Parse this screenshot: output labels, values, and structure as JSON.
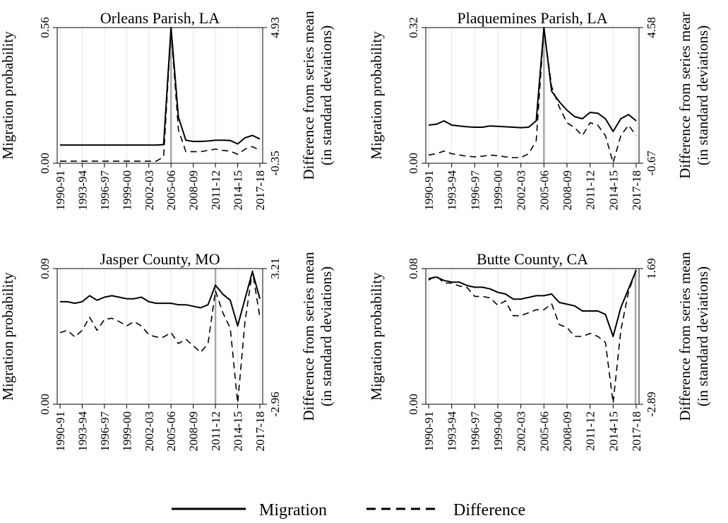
{
  "legend": {
    "placement": "bottom-center",
    "entries": [
      {
        "label": "Migration",
        "style": "solid"
      },
      {
        "label": "Difference",
        "style": "dashed"
      }
    ]
  },
  "chart_data": [
    {
      "type": "line",
      "title": "Orleans Parish, LA",
      "ylabel": "Migration probability",
      "y2label_line1": "Difference from series mean",
      "y2label_line2": "(in standard deviations)",
      "ylim": [
        0,
        0.56
      ],
      "yticks": [
        "0.00",
        "0.56"
      ],
      "y2lim": [
        -0.35,
        4.93
      ],
      "y2ticks": [
        "-0.35",
        "4.93"
      ],
      "event": "2005-06",
      "xticks": [
        "1990-91",
        "1993-94",
        "1996-97",
        "1999-00",
        "2002-03",
        "2005-06",
        "2008-09",
        "2011-12",
        "2014-15",
        "2017-18"
      ],
      "categories": [
        "1990-91",
        "1991-92",
        "1992-93",
        "1993-94",
        "1994-95",
        "1995-96",
        "1996-97",
        "1997-98",
        "1998-99",
        "1999-00",
        "2000-01",
        "2001-02",
        "2002-03",
        "2003-04",
        "2004-05",
        "2005-06",
        "2006-07",
        "2007-08",
        "2008-09",
        "2009-10",
        "2010-11",
        "2011-12",
        "2012-13",
        "2013-14",
        "2014-15",
        "2015-16",
        "2016-17",
        "2017-18"
      ],
      "series": [
        {
          "name": "Migration",
          "style": "solid",
          "values": [
            0.075,
            0.075,
            0.075,
            0.075,
            0.075,
            0.075,
            0.075,
            0.075,
            0.075,
            0.075,
            0.075,
            0.075,
            0.075,
            0.075,
            0.077,
            0.56,
            0.19,
            0.095,
            0.09,
            0.09,
            0.092,
            0.095,
            0.095,
            0.094,
            0.08,
            0.105,
            0.115,
            0.1
          ]
        },
        {
          "name": "Difference",
          "style": "dashed",
          "values": [
            -0.27,
            -0.27,
            -0.27,
            -0.27,
            -0.27,
            -0.27,
            -0.27,
            -0.27,
            -0.27,
            -0.27,
            -0.27,
            -0.27,
            -0.27,
            -0.27,
            -0.1,
            4.85,
            0.95,
            0.1,
            0.1,
            0.1,
            0.15,
            0.2,
            0.15,
            0.12,
            0.0,
            0.2,
            0.3,
            0.15
          ]
        }
      ]
    },
    {
      "type": "line",
      "title": "Plaquemines Parish, LA",
      "ylabel": "Migration probability",
      "y2label_line1": "Difference from series mear",
      "y2label_line2": "(in standard deviations)",
      "ylim": [
        0,
        0.32
      ],
      "yticks": [
        "0.00",
        "0.32"
      ],
      "y2lim": [
        -0.67,
        4.58
      ],
      "y2ticks": [
        "-0.67",
        "4.58"
      ],
      "event": "2005-06",
      "xticks": [
        "1990-91",
        "1993-94",
        "1996-97",
        "1999-00",
        "2002-03",
        "2005-06",
        "2008-09",
        "2011-12",
        "2014-15",
        "2017-18"
      ],
      "categories": [
        "1990-91",
        "1991-92",
        "1992-93",
        "1993-94",
        "1994-95",
        "1995-96",
        "1996-97",
        "1997-98",
        "1998-99",
        "1999-00",
        "2000-01",
        "2001-02",
        "2002-03",
        "2003-04",
        "2004-05",
        "2005-06",
        "2006-07",
        "2007-08",
        "2008-09",
        "2009-10",
        "2010-11",
        "2011-12",
        "2012-13",
        "2013-14",
        "2014-15",
        "2015-16",
        "2016-17",
        "2017-18"
      ],
      "series": [
        {
          "name": "Migration",
          "style": "solid",
          "values": [
            0.09,
            0.092,
            0.1,
            0.09,
            0.088,
            0.086,
            0.085,
            0.085,
            0.088,
            0.087,
            0.086,
            0.085,
            0.084,
            0.085,
            0.1,
            0.32,
            0.17,
            0.145,
            0.125,
            0.11,
            0.105,
            0.12,
            0.118,
            0.105,
            0.075,
            0.105,
            0.115,
            0.1
          ]
        },
        {
          "name": "Difference",
          "style": "dashed",
          "values": [
            -0.35,
            -0.3,
            -0.2,
            -0.3,
            -0.35,
            -0.4,
            -0.42,
            -0.4,
            -0.35,
            -0.38,
            -0.42,
            -0.45,
            -0.45,
            -0.3,
            0.2,
            4.55,
            2.3,
            1.5,
            0.9,
            0.7,
            0.4,
            0.9,
            0.8,
            0.4,
            -0.65,
            0.4,
            0.8,
            0.4
          ]
        }
      ]
    },
    {
      "type": "line",
      "title": "Jasper County, MO",
      "ylabel": "Migration probability",
      "y2label_line1": "Difference from series mean",
      "y2label_line2": "(in standard deviations)",
      "ylim": [
        0,
        0.09
      ],
      "yticks": [
        "0.00",
        "0.09"
      ],
      "y2lim": [
        -2.96,
        3.21
      ],
      "y2ticks": [
        "-2.96",
        "3.21"
      ],
      "event": "2011-12",
      "xticks": [
        "1990-91",
        "1993-94",
        "1996-97",
        "1999-00",
        "2002-03",
        "2005-06",
        "2008-09",
        "2011-12",
        "2014-15",
        "2017-18"
      ],
      "categories": [
        "1990-91",
        "1991-92",
        "1992-93",
        "1993-94",
        "1994-95",
        "1995-96",
        "1996-97",
        "1997-98",
        "1998-99",
        "1999-00",
        "2000-01",
        "2001-02",
        "2002-03",
        "2003-04",
        "2004-05",
        "2005-06",
        "2006-07",
        "2007-08",
        "2008-09",
        "2009-10",
        "2010-11",
        "2011-12",
        "2012-13",
        "2013-14",
        "2014-15",
        "2015-16",
        "2016-17",
        "2017-18"
      ],
      "series": [
        {
          "name": "Migration",
          "style": "solid",
          "values": [
            0.068,
            0.068,
            0.067,
            0.068,
            0.072,
            0.069,
            0.071,
            0.072,
            0.071,
            0.07,
            0.07,
            0.071,
            0.068,
            0.067,
            0.067,
            0.067,
            0.066,
            0.066,
            0.065,
            0.064,
            0.066,
            0.079,
            0.073,
            0.069,
            0.052,
            0.07,
            0.088,
            0.07
          ]
        },
        {
          "name": "Difference",
          "style": "dashed",
          "values": [
            0.3,
            0.4,
            0.1,
            0.4,
            1.0,
            0.4,
            0.9,
            0.95,
            0.8,
            0.6,
            0.8,
            0.6,
            0.2,
            0.1,
            0.1,
            0.3,
            -0.2,
            0.0,
            -0.3,
            -0.6,
            -0.2,
            2.2,
            1.2,
            0.5,
            -2.9,
            0.8,
            3.1,
            1.0
          ]
        }
      ]
    },
    {
      "type": "line",
      "title": "Butte County, CA",
      "ylabel": "Migration probability",
      "y2label_line1": "Difference from series mean",
      "y2label_line2": "(in standard deviations)",
      "ylim": [
        0,
        0.08
      ],
      "yticks": [
        "0.00",
        "0.08"
      ],
      "y2lim": [
        -2.89,
        1.69
      ],
      "y2ticks": [
        "-2.89",
        "1.69"
      ],
      "event": "2018",
      "xticks": [
        "1990-91",
        "1993-94",
        "1996-97",
        "1999-00",
        "2002-03",
        "2005-06",
        "2008-09",
        "2011-12",
        "2014-15",
        "2017-18"
      ],
      "categories": [
        "1990-91",
        "1991-92",
        "1992-93",
        "1993-94",
        "1994-95",
        "1995-96",
        "1996-97",
        "1997-98",
        "1998-99",
        "1999-00",
        "2000-01",
        "2001-02",
        "2002-03",
        "2003-04",
        "2004-05",
        "2005-06",
        "2006-07",
        "2007-08",
        "2008-09",
        "2009-10",
        "2010-11",
        "2011-12",
        "2012-13",
        "2013-14",
        "2014-15",
        "2015-16",
        "2016-17",
        "2017-18"
      ],
      "series": [
        {
          "name": "Migration",
          "style": "solid",
          "values": [
            0.074,
            0.075,
            0.073,
            0.072,
            0.072,
            0.07,
            0.069,
            0.069,
            0.068,
            0.066,
            0.065,
            0.062,
            0.062,
            0.063,
            0.064,
            0.064,
            0.065,
            0.06,
            0.059,
            0.058,
            0.055,
            0.055,
            0.055,
            0.053,
            0.04,
            0.057,
            0.068,
            0.079
          ]
        },
        {
          "name": "Difference",
          "style": "dashed",
          "values": [
            1.3,
            1.45,
            1.2,
            1.2,
            1.1,
            1.05,
            0.75,
            0.75,
            0.7,
            0.45,
            0.6,
            0.1,
            0.1,
            0.2,
            0.3,
            0.3,
            0.5,
            -0.2,
            -0.3,
            -0.6,
            -0.6,
            -0.5,
            -0.6,
            -0.8,
            -2.85,
            -0.4,
            0.9,
            1.65
          ]
        }
      ]
    }
  ]
}
